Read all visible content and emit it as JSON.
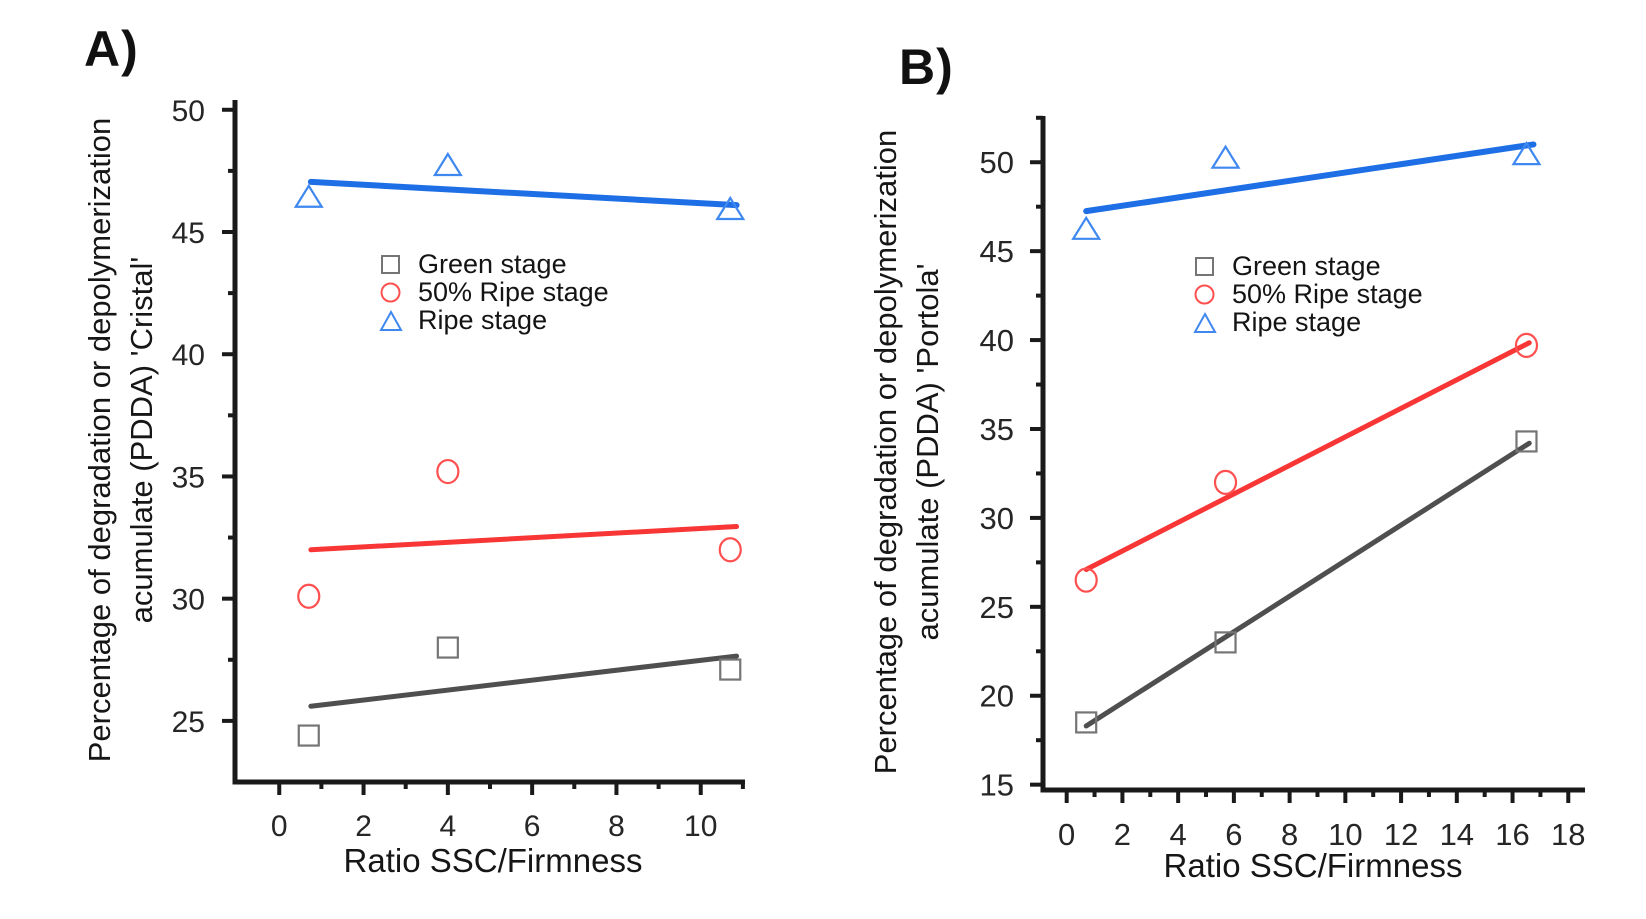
{
  "figure": {
    "background_color": "#ffffff",
    "axis_color": "#1a1a1a",
    "tick_label_color": "#262626"
  },
  "chart_data": [
    {
      "panel_label": "A)",
      "type": "scatter",
      "xlabel": "Ratio SSC/Firmness",
      "ylabel_line1": "Percentage of degradation or depolymerization",
      "ylabel_line2": "acumulate (PDDA) 'Cristal'",
      "xlim": [
        -1.05,
        11.05
      ],
      "ylim": [
        22.5,
        50.4
      ],
      "x_major_ticks": [
        0,
        2,
        4,
        6,
        8,
        10
      ],
      "x_minor_ticks": [
        1,
        3,
        5,
        7,
        9,
        11
      ],
      "y_major_ticks": [
        25,
        30,
        35,
        40,
        45,
        50
      ],
      "y_minor_ticks": [
        27.5,
        32.5,
        37.5,
        42.5,
        47.5
      ],
      "grid": false,
      "legend_position": "inside upper-left-center",
      "series": [
        {
          "name": "Green stage",
          "marker": "square",
          "marker_color": "#757575",
          "line_color": "#4f4f4f",
          "points": [
            [
              0.7,
              24.4
            ],
            [
              4.0,
              28.0
            ],
            [
              10.7,
              27.1
            ]
          ],
          "trend_line": [
            [
              0.75,
              25.6
            ],
            [
              10.85,
              27.65
            ]
          ]
        },
        {
          "name": "50% Ripe stage",
          "marker": "circle",
          "marker_color": "#ff5050",
          "line_color": "#f93636",
          "points": [
            [
              0.7,
              30.1
            ],
            [
              4.0,
              35.2
            ],
            [
              10.7,
              32.0
            ]
          ],
          "trend_line": [
            [
              0.75,
              32.0
            ],
            [
              10.85,
              32.95
            ]
          ]
        },
        {
          "name": "Ripe stage",
          "marker": "triangle",
          "marker_color": "#3e88f0",
          "line_color": "#1e6fe6",
          "points": [
            [
              0.7,
              46.4
            ],
            [
              4.0,
              47.7
            ],
            [
              10.7,
              45.9
            ]
          ],
          "trend_line": [
            [
              0.75,
              47.05
            ],
            [
              10.85,
              46.1
            ]
          ]
        }
      ]
    },
    {
      "panel_label": "B)",
      "type": "scatter",
      "xlabel": "Ratio SSC/Firmness",
      "ylabel_line1": "Percentage of degradation or depolymerization",
      "ylabel_line2": "acumulate (PDDA) 'Portola'",
      "xlim": [
        -0.85,
        18.6
      ],
      "ylim": [
        14.7,
        52.6
      ],
      "x_major_ticks": [
        0,
        2,
        4,
        6,
        8,
        10,
        12,
        14,
        16,
        18
      ],
      "x_minor_ticks": [
        1,
        3,
        5,
        7,
        9,
        11,
        13,
        15,
        17
      ],
      "y_major_ticks": [
        15,
        20,
        25,
        30,
        35,
        40,
        45,
        50
      ],
      "y_minor_ticks": [
        17.5,
        22.5,
        27.5,
        32.5,
        37.5,
        42.5,
        47.5,
        52.5
      ],
      "grid": false,
      "legend_position": "inside upper-left-center",
      "series": [
        {
          "name": "Green stage",
          "marker": "square",
          "marker_color": "#757575",
          "line_color": "#4f4f4f",
          "points": [
            [
              0.7,
              18.5
            ],
            [
              5.7,
              23.0
            ],
            [
              16.5,
              34.3
            ]
          ],
          "trend_line": [
            [
              0.7,
              18.3
            ],
            [
              16.6,
              34.2
            ]
          ]
        },
        {
          "name": "50% Ripe stage",
          "marker": "circle",
          "marker_color": "#ff5050",
          "line_color": "#f93636",
          "points": [
            [
              0.7,
              26.5
            ],
            [
              5.7,
              32.0
            ],
            [
              16.5,
              39.7
            ]
          ],
          "trend_line": [
            [
              0.7,
              27.1
            ],
            [
              16.6,
              39.85
            ]
          ]
        },
        {
          "name": "Ripe stage",
          "marker": "triangle",
          "marker_color": "#3e88f0",
          "line_color": "#1e6fe6",
          "points": [
            [
              0.7,
              46.2
            ],
            [
              5.7,
              50.2
            ],
            [
              16.5,
              50.4
            ]
          ],
          "trend_line": [
            [
              0.7,
              47.25
            ],
            [
              16.75,
              51.0
            ]
          ]
        }
      ]
    }
  ]
}
